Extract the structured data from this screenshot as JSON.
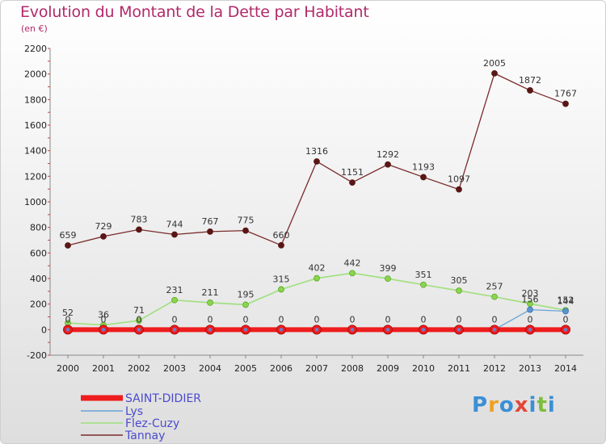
{
  "title": "Evolution du Montant de la Dette par Habitant",
  "subtitle": "(en €)",
  "logo": {
    "text": "Proxiti",
    "colors": [
      "#3a8fd6",
      "#f0a020",
      "#3a8fd6",
      "#e2473a",
      "#3a8fd6",
      "#7bbf3a",
      "#3a8fd6"
    ]
  },
  "colors": {
    "SAINT-DIDIER": "#ee1c1c",
    "Lys": "#6aa3d6",
    "Flez-Cuzy": "#9ee07a",
    "Tannay": "#7b2b2b"
  },
  "chart_data": {
    "type": "line",
    "title": "Evolution du Montant de la Dette par Habitant",
    "subtitle": "(en €)",
    "xlabel": "",
    "ylabel": "",
    "ylim": [
      -200,
      2200
    ],
    "yticks": [
      -200,
      0,
      200,
      400,
      600,
      800,
      1000,
      1200,
      1400,
      1600,
      1800,
      2000,
      2200
    ],
    "x": [
      "2000",
      "2001",
      "2002",
      "2003",
      "2004",
      "2005",
      "2006",
      "2007",
      "2008",
      "2009",
      "2010",
      "2011",
      "2012",
      "2013",
      "2014"
    ],
    "grid": false,
    "legend": "bottom-left",
    "series": [
      {
        "name": "SAINT-DIDIER",
        "values": [
          0,
          0,
          0,
          0,
          0,
          0,
          0,
          0,
          0,
          0,
          0,
          0,
          0,
          0,
          0
        ],
        "labels": [
          "",
          "",
          "",
          "0",
          "0",
          "0",
          "0",
          "0",
          "0",
          "0",
          "0",
          "0",
          "0",
          "0",
          "0"
        ]
      },
      {
        "name": "Lys",
        "values": [
          0,
          0,
          0,
          0,
          0,
          0,
          0,
          0,
          0,
          0,
          0,
          0,
          0,
          156,
          144
        ],
        "labels": [
          "0",
          "0",
          "0",
          "",
          "",
          "",
          "",
          "",
          "",
          "",
          "",
          "",
          "",
          "156",
          "144"
        ]
      },
      {
        "name": "Flez-Cuzy",
        "values": [
          52,
          36,
          71,
          231,
          211,
          195,
          315,
          402,
          442,
          399,
          351,
          305,
          257,
          203,
          152
        ],
        "labels": [
          "52",
          "36",
          "71",
          "231",
          "211",
          "195",
          "315",
          "402",
          "442",
          "399",
          "351",
          "305",
          "257",
          "203",
          "152"
        ]
      },
      {
        "name": "Tannay",
        "values": [
          659,
          729,
          783,
          744,
          767,
          775,
          660,
          1316,
          1151,
          1292,
          1193,
          1097,
          2005,
          1872,
          1767
        ],
        "labels": [
          "659",
          "729",
          "783",
          "744",
          "767",
          "775",
          "660",
          "1316",
          "1151",
          "1292",
          "1193",
          "1097",
          "2005",
          "1872",
          "1767"
        ]
      }
    ]
  }
}
